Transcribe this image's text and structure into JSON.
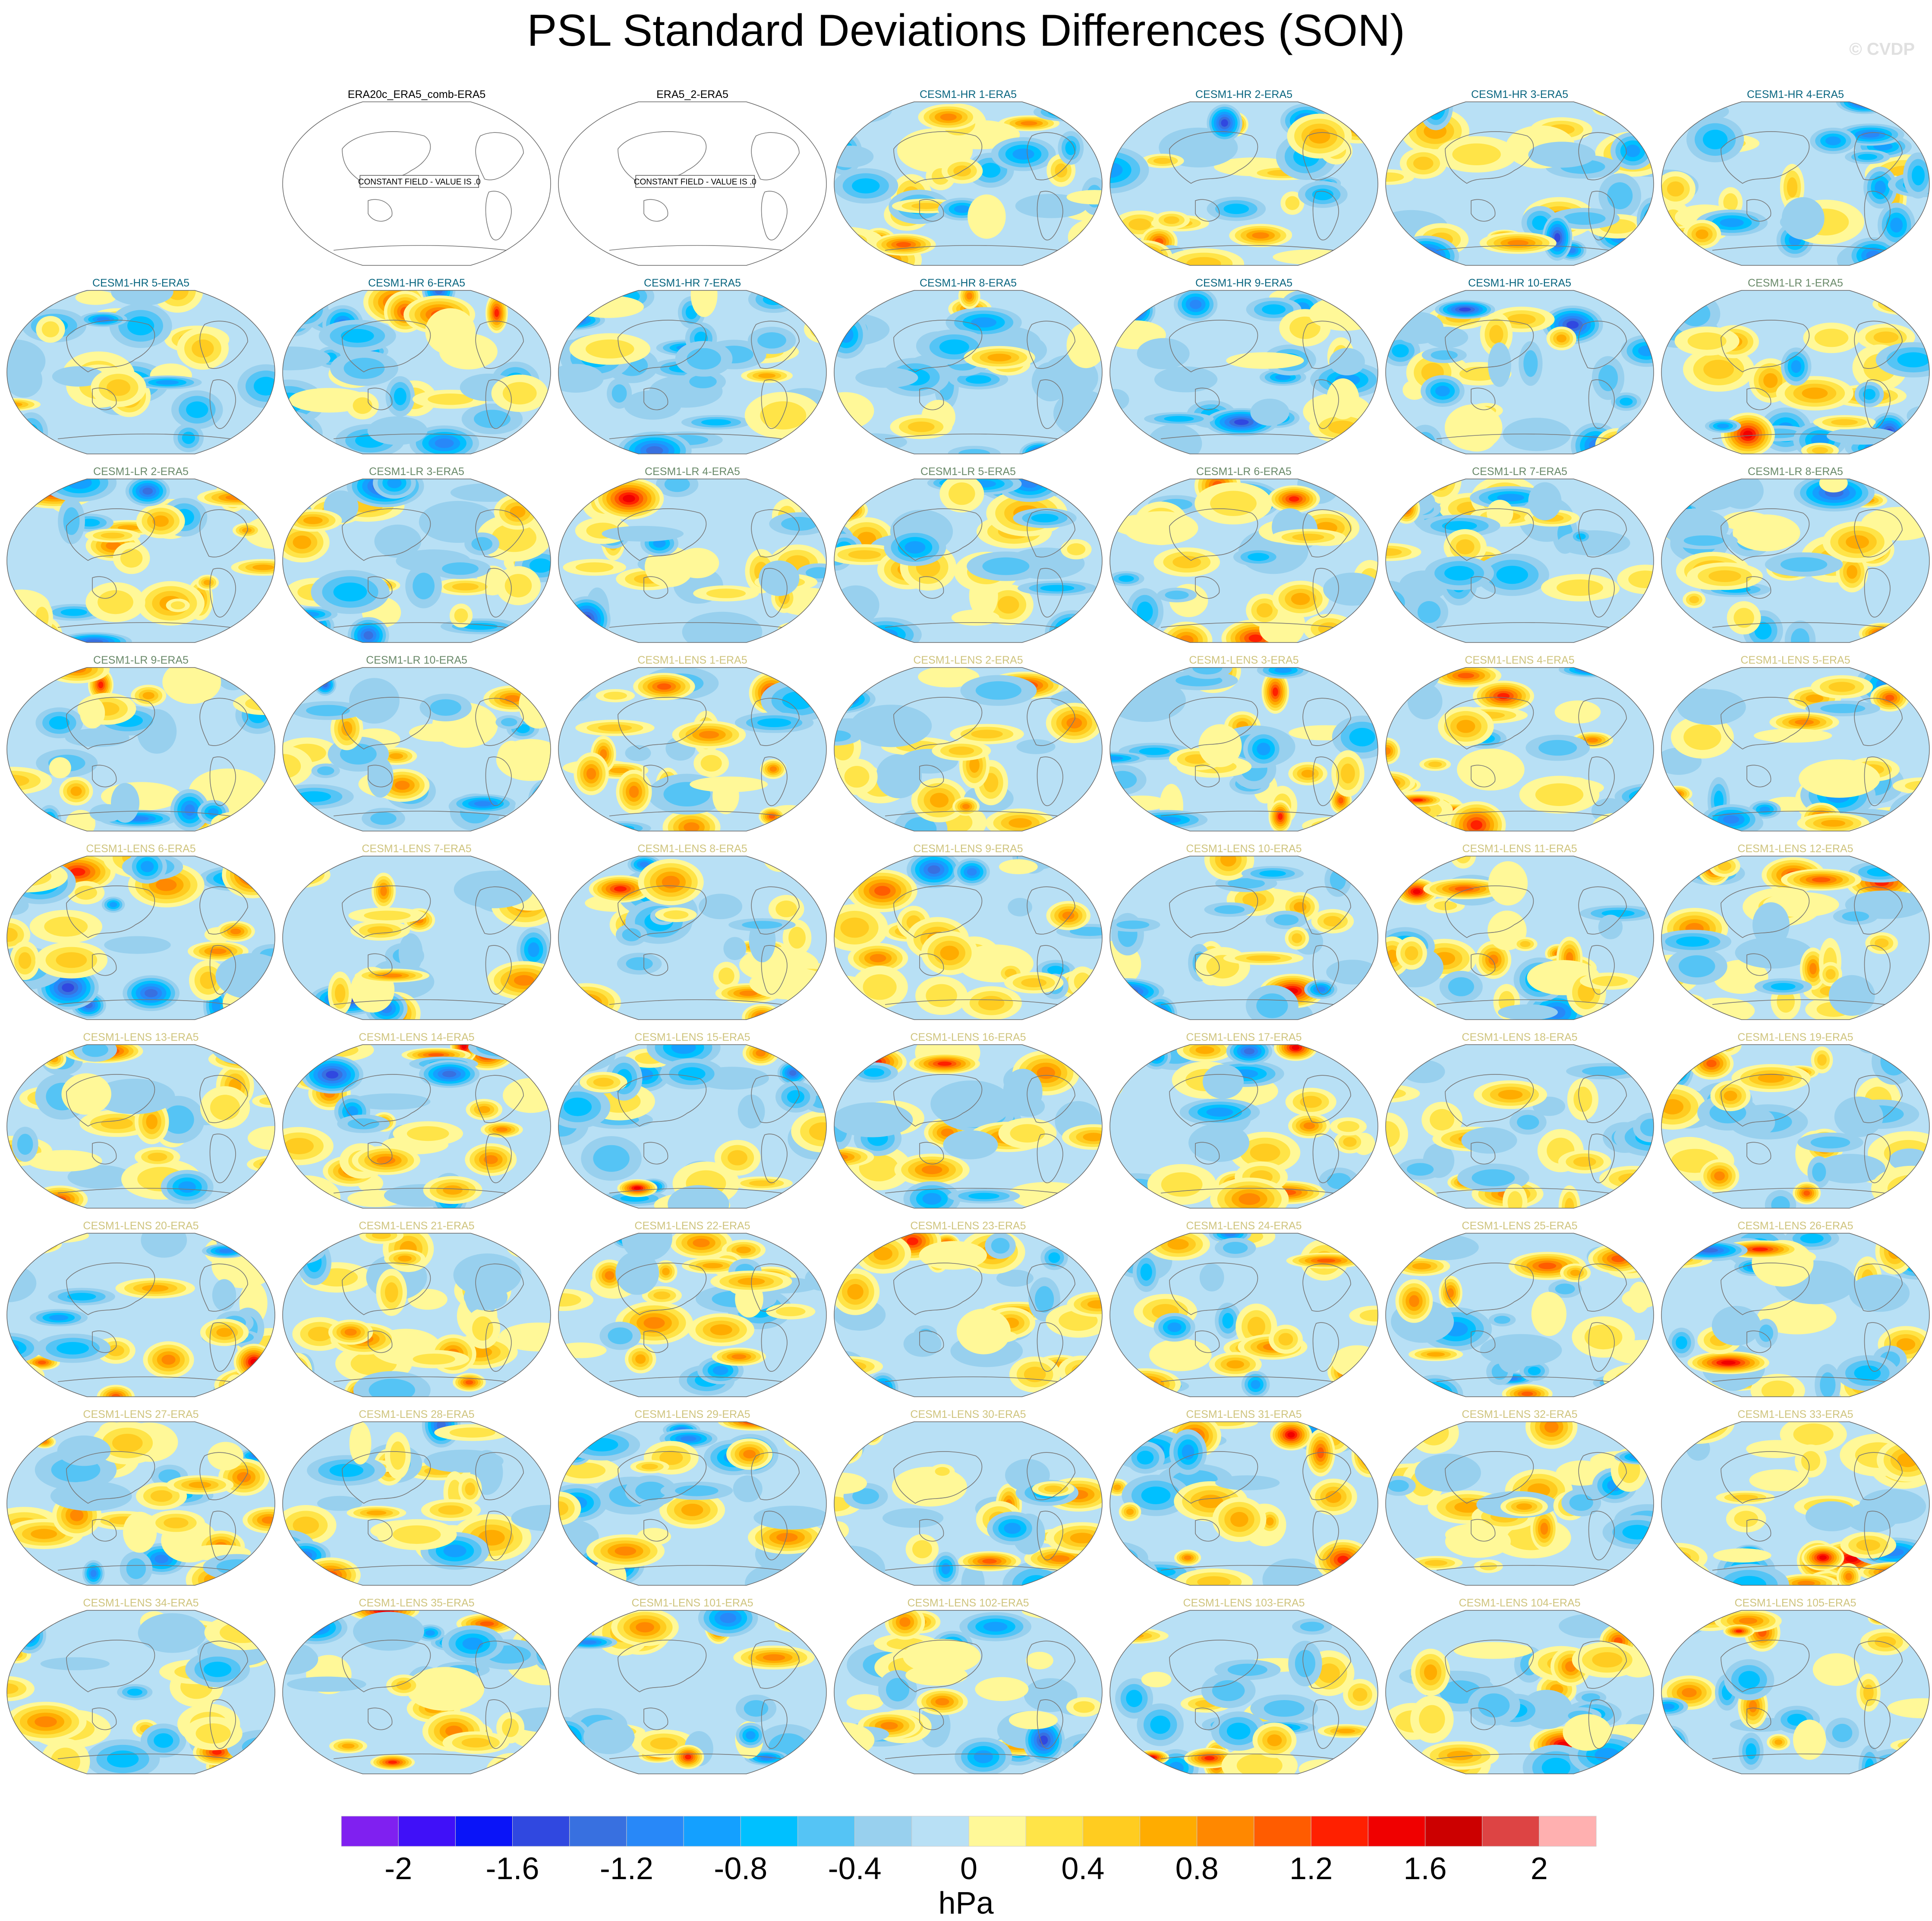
{
  "chart_data": {
    "type": "heatmap",
    "title": "PSL Standard Deviations Differences (SON)",
    "watermark": "© CVDP",
    "projection": "Robinson, Pacific-centered",
    "grid": false,
    "layout": {
      "columns": 7,
      "rows": 9,
      "first_empty_cells": 1
    },
    "group_title_colors": {
      "obs": "#000000",
      "hr": "#0a6680",
      "lr": "#6a8a6a",
      "lens": "#cfc47e"
    },
    "panels": [
      {
        "title": "ERA20c_ERA5_comb-ERA5",
        "group": "obs",
        "note": "CONSTANT FIELD - VALUE IS .0"
      },
      {
        "title": "ERA5_2-ERA5",
        "group": "obs",
        "note": "CONSTANT FIELD - VALUE IS .0"
      },
      {
        "title": "CESM1-HR 1-ERA5",
        "group": "hr"
      },
      {
        "title": "CESM1-HR 2-ERA5",
        "group": "hr"
      },
      {
        "title": "CESM1-HR 3-ERA5",
        "group": "hr"
      },
      {
        "title": "CESM1-HR 4-ERA5",
        "group": "hr"
      },
      {
        "title": "CESM1-HR 5-ERA5",
        "group": "hr"
      },
      {
        "title": "CESM1-HR 6-ERA5",
        "group": "hr"
      },
      {
        "title": "CESM1-HR 7-ERA5",
        "group": "hr"
      },
      {
        "title": "CESM1-HR 8-ERA5",
        "group": "hr"
      },
      {
        "title": "CESM1-HR 9-ERA5",
        "group": "hr"
      },
      {
        "title": "CESM1-HR 10-ERA5",
        "group": "hr"
      },
      {
        "title": "CESM1-LR 1-ERA5",
        "group": "lr"
      },
      {
        "title": "CESM1-LR 2-ERA5",
        "group": "lr"
      },
      {
        "title": "CESM1-LR 3-ERA5",
        "group": "lr"
      },
      {
        "title": "CESM1-LR 4-ERA5",
        "group": "lr"
      },
      {
        "title": "CESM1-LR 5-ERA5",
        "group": "lr"
      },
      {
        "title": "CESM1-LR 6-ERA5",
        "group": "lr"
      },
      {
        "title": "CESM1-LR 7-ERA5",
        "group": "lr"
      },
      {
        "title": "CESM1-LR 8-ERA5",
        "group": "lr"
      },
      {
        "title": "CESM1-LR 9-ERA5",
        "group": "lr"
      },
      {
        "title": "CESM1-LR 10-ERA5",
        "group": "lr"
      },
      {
        "title": "CESM1-LENS 1-ERA5",
        "group": "lens"
      },
      {
        "title": "CESM1-LENS 2-ERA5",
        "group": "lens"
      },
      {
        "title": "CESM1-LENS 3-ERA5",
        "group": "lens"
      },
      {
        "title": "CESM1-LENS 4-ERA5",
        "group": "lens"
      },
      {
        "title": "CESM1-LENS 5-ERA5",
        "group": "lens"
      },
      {
        "title": "CESM1-LENS 6-ERA5",
        "group": "lens"
      },
      {
        "title": "CESM1-LENS 7-ERA5",
        "group": "lens"
      },
      {
        "title": "CESM1-LENS 8-ERA5",
        "group": "lens"
      },
      {
        "title": "CESM1-LENS 9-ERA5",
        "group": "lens"
      },
      {
        "title": "CESM1-LENS 10-ERA5",
        "group": "lens"
      },
      {
        "title": "CESM1-LENS 11-ERA5",
        "group": "lens"
      },
      {
        "title": "CESM1-LENS 12-ERA5",
        "group": "lens"
      },
      {
        "title": "CESM1-LENS 13-ERA5",
        "group": "lens"
      },
      {
        "title": "CESM1-LENS 14-ERA5",
        "group": "lens"
      },
      {
        "title": "CESM1-LENS 15-ERA5",
        "group": "lens"
      },
      {
        "title": "CESM1-LENS 16-ERA5",
        "group": "lens"
      },
      {
        "title": "CESM1-LENS 17-ERA5",
        "group": "lens"
      },
      {
        "title": "CESM1-LENS 18-ERA5",
        "group": "lens"
      },
      {
        "title": "CESM1-LENS 19-ERA5",
        "group": "lens"
      },
      {
        "title": "CESM1-LENS 20-ERA5",
        "group": "lens"
      },
      {
        "title": "CESM1-LENS 21-ERA5",
        "group": "lens"
      },
      {
        "title": "CESM1-LENS 22-ERA5",
        "group": "lens"
      },
      {
        "title": "CESM1-LENS 23-ERA5",
        "group": "lens"
      },
      {
        "title": "CESM1-LENS 24-ERA5",
        "group": "lens"
      },
      {
        "title": "CESM1-LENS 25-ERA5",
        "group": "lens"
      },
      {
        "title": "CESM1-LENS 26-ERA5",
        "group": "lens"
      },
      {
        "title": "CESM1-LENS 27-ERA5",
        "group": "lens"
      },
      {
        "title": "CESM1-LENS 28-ERA5",
        "group": "lens"
      },
      {
        "title": "CESM1-LENS 29-ERA5",
        "group": "lens"
      },
      {
        "title": "CESM1-LENS 30-ERA5",
        "group": "lens"
      },
      {
        "title": "CESM1-LENS 31-ERA5",
        "group": "lens"
      },
      {
        "title": "CESM1-LENS 32-ERA5",
        "group": "lens"
      },
      {
        "title": "CESM1-LENS 33-ERA5",
        "group": "lens"
      },
      {
        "title": "CESM1-LENS 34-ERA5",
        "group": "lens"
      },
      {
        "title": "CESM1-LENS 35-ERA5",
        "group": "lens"
      },
      {
        "title": "CESM1-LENS 101-ERA5",
        "group": "lens"
      },
      {
        "title": "CESM1-LENS 102-ERA5",
        "group": "lens"
      },
      {
        "title": "CESM1-LENS 103-ERA5",
        "group": "lens"
      },
      {
        "title": "CESM1-LENS 104-ERA5",
        "group": "lens"
      },
      {
        "title": "CESM1-LENS 105-ERA5",
        "group": "lens"
      }
    ],
    "colorbar": {
      "units": "hPa",
      "levels": [
        -2,
        -1.8,
        -1.6,
        -1.4,
        -1.2,
        -1,
        -0.8,
        -0.6,
        -0.4,
        -0.2,
        0,
        0.2,
        0.4,
        0.6,
        0.8,
        1,
        1.2,
        1.4,
        1.6,
        1.8,
        2
      ],
      "tick_labels": [
        "-2",
        "-1.6",
        "-1.2",
        "-0.8",
        "-0.4",
        "0",
        "0.4",
        "0.8",
        "1.2",
        "1.6",
        "2"
      ],
      "colors": [
        "#8020f0",
        "#4010f8",
        "#0a14f8",
        "#3048e0",
        "#3870e0",
        "#2888f8",
        "#14a0ff",
        "#00c0ff",
        "#55c4f5",
        "#98d0ee",
        "#b8e0f5",
        "#fff898",
        "#ffe448",
        "#ffcc20",
        "#ffac00",
        "#ff8800",
        "#ff5c00",
        "#ff2000",
        "#f00000",
        "#cc0000",
        "#dd4444",
        "#ffb0b0"
      ]
    }
  }
}
